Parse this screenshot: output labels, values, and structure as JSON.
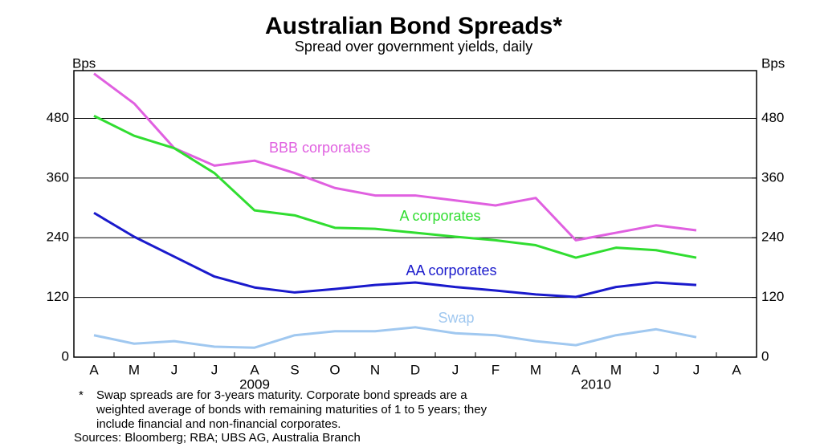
{
  "chart_data": {
    "type": "line",
    "title": "Australian Bond Spreads*",
    "subtitle": "Spread over government yields, daily",
    "y_label": "Bps",
    "y2_label": "Bps",
    "categories": [
      "A",
      "M",
      "J",
      "J",
      "A",
      "S",
      "O",
      "N",
      "D",
      "J",
      "F",
      "M",
      "A",
      "M",
      "J",
      "J",
      "A"
    ],
    "years": [
      "2009",
      "2010"
    ],
    "ylim": [
      0,
      576
    ],
    "yticks": [
      0,
      120,
      240,
      360,
      480
    ],
    "y2lim": [
      0,
      576
    ],
    "y2ticks": [
      0,
      120,
      240,
      360,
      480
    ],
    "grid": true,
    "series": [
      {
        "name": "BBB corporates",
        "color": "#e060e0",
        "values": [
          570,
          510,
          420,
          385,
          395,
          370,
          340,
          325,
          325,
          315,
          305,
          320,
          235,
          250,
          265,
          255,
          null
        ]
      },
      {
        "name": "A corporates",
        "color": "#30dd30",
        "values": [
          485,
          445,
          420,
          370,
          295,
          285,
          260,
          258,
          250,
          242,
          235,
          225,
          200,
          220,
          215,
          200,
          null
        ]
      },
      {
        "name": "AA corporates",
        "color": "#1a1acc",
        "values": [
          290,
          242,
          202,
          162,
          140,
          130,
          137,
          145,
          150,
          141,
          134,
          126,
          121,
          141,
          150,
          145,
          null
        ]
      },
      {
        "name": "Swap",
        "color": "#a0c8f0",
        "values": [
          44,
          27,
          32,
          21,
          19,
          44,
          52,
          52,
          60,
          48,
          44,
          32,
          24,
          44,
          56,
          40,
          null
        ]
      }
    ],
    "footnote": {
      "marker": "*",
      "lines": [
        "Swap spreads are for 3-years maturity. Corporate bond spreads are a",
        "weighted average of bonds with remaining maturities of 1 to 5 years; they",
        "include financial and non-financial corporates."
      ]
    },
    "sources": "Sources: Bloomberg; RBA; UBS AG, Australia Branch"
  }
}
